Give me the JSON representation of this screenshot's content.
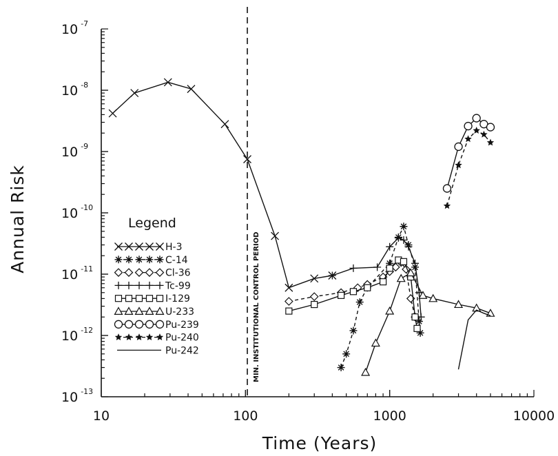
{
  "chart_data": {
    "type": "line",
    "xlabel": "Time (Years)",
    "ylabel": "Annual Risk",
    "x_scale": "log",
    "y_scale": "log",
    "xlim": [
      10,
      10000
    ],
    "ylim": [
      1e-13,
      1e-07
    ],
    "x_ticks": [
      {
        "value": 10,
        "label": "10"
      },
      {
        "value": 100,
        "label": "100"
      },
      {
        "value": 1000,
        "label": "1000"
      },
      {
        "value": 10000,
        "label": "10000"
      }
    ],
    "y_ticks": [
      {
        "value": 1e-07,
        "base": "10",
        "exp": "-7"
      },
      {
        "value": 1e-08,
        "base": "10",
        "exp": "-8"
      },
      {
        "value": 1e-09,
        "base": "10",
        "exp": "-9"
      },
      {
        "value": 1e-10,
        "base": "10",
        "exp": "-10"
      },
      {
        "value": 1e-11,
        "base": "10",
        "exp": "-11"
      },
      {
        "value": 1e-12,
        "base": "10",
        "exp": "-12"
      },
      {
        "value": 1e-13,
        "base": "10",
        "exp": "-13"
      }
    ],
    "legend_title": "Legend",
    "legend_position": "left",
    "vline": {
      "x": 103,
      "label": "MIN. INSTITUTIONAL CONTROL PERIOD"
    },
    "series": [
      {
        "name": "H-3",
        "marker": "x",
        "dash": "solid",
        "points": [
          [
            12,
            4.2e-09
          ],
          [
            17,
            9e-09
          ],
          [
            29,
            1.35e-08
          ],
          [
            42,
            1.05e-08
          ],
          [
            72,
            2.8e-09
          ],
          [
            103,
            7.5e-10
          ],
          [
            160,
            4.2e-11
          ],
          [
            200,
            6e-12
          ],
          [
            300,
            8.5e-12
          ],
          [
            400,
            9.5e-12
          ]
        ]
      },
      {
        "name": "C-14",
        "marker": "asterisk",
        "dash": "dashed",
        "points": [
          [
            460,
            3e-13
          ],
          [
            500,
            5e-13
          ],
          [
            560,
            1.2e-12
          ],
          [
            620,
            3.5e-12
          ],
          [
            700,
            6e-12
          ],
          [
            1000,
            1.5e-11
          ],
          [
            1150,
            4e-11
          ],
          [
            1250,
            6e-11
          ],
          [
            1350,
            3e-11
          ],
          [
            1500,
            1.3e-11
          ],
          [
            1600,
            1.7e-12
          ],
          [
            1630,
            1.1e-12
          ]
        ]
      },
      {
        "name": "Cl-36",
        "marker": "diamond",
        "dash": "dashed",
        "points": [
          [
            200,
            3.6e-12
          ],
          [
            300,
            4.3e-12
          ],
          [
            460,
            5e-12
          ],
          [
            600,
            6e-12
          ],
          [
            700,
            6.8e-12
          ],
          [
            900,
            9e-12
          ],
          [
            1000,
            1.1e-11
          ],
          [
            1100,
            1.3e-11
          ],
          [
            1200,
            1.55e-11
          ],
          [
            1300,
            1.2e-11
          ],
          [
            1400,
            4e-12
          ],
          [
            1500,
            2e-12
          ]
        ]
      },
      {
        "name": "Tc-99",
        "marker": "plus",
        "dash": "solid",
        "points": [
          [
            400,
            9.5e-12
          ],
          [
            560,
            1.25e-11
          ],
          [
            820,
            1.3e-11
          ],
          [
            1000,
            2.8e-11
          ],
          [
            1150,
            3.9e-11
          ],
          [
            1250,
            3.6e-11
          ],
          [
            1350,
            2.8e-11
          ],
          [
            1500,
            1.5e-11
          ],
          [
            1600,
            5e-12
          ],
          [
            1650,
            2e-12
          ]
        ]
      },
      {
        "name": "I-129",
        "marker": "square",
        "dash": "solid",
        "points": [
          [
            200,
            2.5e-12
          ],
          [
            300,
            3.2e-12
          ],
          [
            460,
            4.5e-12
          ],
          [
            560,
            5.2e-12
          ],
          [
            700,
            6e-12
          ],
          [
            900,
            7.5e-12
          ],
          [
            1000,
            1.25e-11
          ],
          [
            1150,
            1.7e-11
          ],
          [
            1250,
            1.6e-11
          ],
          [
            1400,
            9e-12
          ],
          [
            1500,
            2e-12
          ],
          [
            1550,
            1.3e-12
          ]
        ]
      },
      {
        "name": "U-233",
        "marker": "triangle",
        "dash": "solid",
        "points": [
          [
            680,
            2.5e-13
          ],
          [
            800,
            7.5e-13
          ],
          [
            1000,
            2.5e-12
          ],
          [
            1200,
            8.5e-12
          ],
          [
            1400,
            1.05e-11
          ],
          [
            1700,
            4.5e-12
          ],
          [
            2000,
            4e-12
          ],
          [
            3000,
            3.2e-12
          ],
          [
            4000,
            2.8e-12
          ],
          [
            5000,
            2.3e-12
          ]
        ]
      },
      {
        "name": "Pu-239",
        "marker": "circle",
        "dash": "solid",
        "points": [
          [
            2500,
            2.5e-10
          ],
          [
            3000,
            1.2e-09
          ],
          [
            3500,
            2.6e-09
          ],
          [
            4000,
            3.5e-09
          ],
          [
            4500,
            2.8e-09
          ],
          [
            5000,
            2.5e-09
          ]
        ]
      },
      {
        "name": "Pu-240",
        "marker": "star",
        "dash": "dashed",
        "points": [
          [
            2500,
            1.3e-10
          ],
          [
            3000,
            6e-10
          ],
          [
            3500,
            1.6e-09
          ],
          [
            4000,
            2.2e-09
          ],
          [
            4500,
            1.9e-09
          ],
          [
            5000,
            1.4e-09
          ]
        ]
      },
      {
        "name": "Pu-242",
        "marker": "none",
        "dash": "solid",
        "points": [
          [
            3000,
            2.8e-13
          ],
          [
            3500,
            1.8e-12
          ],
          [
            4000,
            2.6e-12
          ],
          [
            4500,
            2.3e-12
          ],
          [
            5000,
            2.1e-12
          ]
        ]
      }
    ]
  }
}
